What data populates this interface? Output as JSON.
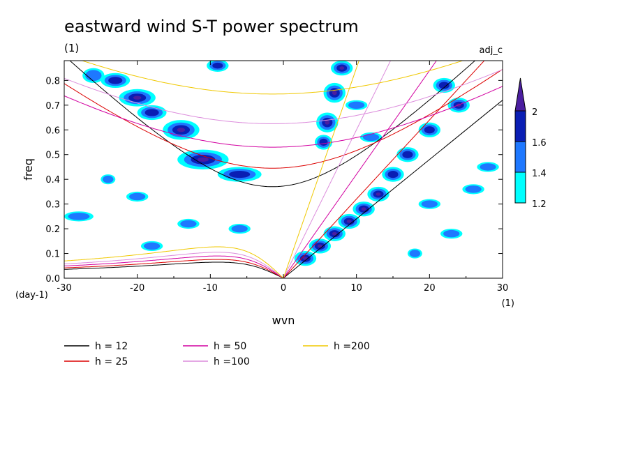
{
  "chart_data": {
    "type": "contour",
    "title": "eastward wind S-T power spectrum",
    "subtitle_left": "(1)",
    "subtitle_right": "adj_c",
    "xlabel": "wvn",
    "ylabel": "freq",
    "x_unit": "(1)",
    "y_unit": "(day-1)",
    "xlim": [
      -30,
      30
    ],
    "ylim": [
      0.0,
      0.88
    ],
    "x_ticks": [
      -30,
      -20,
      -10,
      0,
      10,
      20,
      30
    ],
    "x_tick_labels": [
      "-30",
      "-20",
      "-10",
      "0",
      "10",
      "20",
      "30"
    ],
    "y_ticks": [
      0.0,
      0.1,
      0.2,
      0.3,
      0.4,
      0.5,
      0.6,
      0.7,
      0.8
    ],
    "y_tick_labels": [
      "0.0",
      "0.1",
      "0.2",
      "0.3",
      "0.4",
      "0.5",
      "0.6",
      "0.7",
      "0.8"
    ],
    "colorbar": {
      "levels": [
        1.2,
        1.4,
        1.6,
        2.0
      ],
      "labels": [
        "1.2",
        "1.4",
        "1.6",
        "2"
      ],
      "colors": [
        "#00ffff",
        "#1e78ff",
        "#0a1eb4",
        "#4b1ea0"
      ]
    },
    "curve_colors": {
      "h12": "#000000",
      "h25": "#dc0000",
      "h50": "#d200a0",
      "h100": "#dc8cdc",
      "h200": "#f0c800"
    },
    "legend": [
      {
        "label": "h = 12",
        "color": "#000000",
        "key": "h12",
        "h": 12
      },
      {
        "label": "h = 25",
        "color": "#dc0000",
        "key": "h25",
        "h": 25
      },
      {
        "label": "h = 50",
        "color": "#d200a0",
        "key": "h50",
        "h": 50
      },
      {
        "label": "h =100",
        "color": "#dc8cdc",
        "key": "h100",
        "h": 100
      },
      {
        "label": "h =200",
        "color": "#f0c800",
        "key": "h200",
        "h": 200
      }
    ],
    "inertia_gravity_min_freq": {
      "h12": 0.37,
      "h25": 0.445,
      "h50": 0.53,
      "h100": 0.625,
      "h200": 0.745
    },
    "rossby_peak_freq": {
      "h12": 0.065,
      "h25": 0.076,
      "h50": 0.09,
      "h100": 0.105,
      "h200": 0.127
    },
    "kelvin_slope": {
      "h12": 0.024,
      "h25": 0.032,
      "h50": 0.042,
      "h100": 0.06,
      "h200": 0.085
    },
    "power_blobs": [
      {
        "x": -20,
        "y": 0.73,
        "rx": 2.5,
        "ry": 0.035,
        "level": 3
      },
      {
        "x": -18,
        "y": 0.67,
        "rx": 2.0,
        "ry": 0.03,
        "level": 2
      },
      {
        "x": -14,
        "y": 0.6,
        "rx": 2.5,
        "ry": 0.04,
        "level": 3
      },
      {
        "x": -11,
        "y": 0.48,
        "rx": 3.5,
        "ry": 0.04,
        "level": 3
      },
      {
        "x": -6,
        "y": 0.42,
        "rx": 3.0,
        "ry": 0.03,
        "level": 2
      },
      {
        "x": -23,
        "y": 0.8,
        "rx": 2.0,
        "ry": 0.03,
        "level": 2
      },
      {
        "x": -26,
        "y": 0.82,
        "rx": 1.5,
        "ry": 0.03,
        "level": 1
      },
      {
        "x": -9,
        "y": 0.86,
        "rx": 1.5,
        "ry": 0.025,
        "level": 2
      },
      {
        "x": -28,
        "y": 0.25,
        "rx": 2.0,
        "ry": 0.02,
        "level": 1
      },
      {
        "x": -20,
        "y": 0.33,
        "rx": 1.5,
        "ry": 0.02,
        "level": 1
      },
      {
        "x": -13,
        "y": 0.22,
        "rx": 1.5,
        "ry": 0.02,
        "level": 1
      },
      {
        "x": -18,
        "y": 0.13,
        "rx": 1.5,
        "ry": 0.02,
        "level": 1
      },
      {
        "x": -24,
        "y": 0.4,
        "rx": 1.0,
        "ry": 0.02,
        "level": 1
      },
      {
        "x": -6,
        "y": 0.2,
        "rx": 1.5,
        "ry": 0.02,
        "level": 1
      },
      {
        "x": 7,
        "y": 0.75,
        "rx": 1.5,
        "ry": 0.04,
        "level": 3
      },
      {
        "x": 8,
        "y": 0.85,
        "rx": 1.5,
        "ry": 0.03,
        "level": 3
      },
      {
        "x": 6,
        "y": 0.63,
        "rx": 1.5,
        "ry": 0.04,
        "level": 3
      },
      {
        "x": 5.5,
        "y": 0.55,
        "rx": 1.2,
        "ry": 0.03,
        "level": 2
      },
      {
        "x": 3,
        "y": 0.08,
        "rx": 1.5,
        "ry": 0.03,
        "level": 3
      },
      {
        "x": 5,
        "y": 0.13,
        "rx": 1.5,
        "ry": 0.03,
        "level": 3
      },
      {
        "x": 7,
        "y": 0.18,
        "rx": 1.5,
        "ry": 0.03,
        "level": 3
      },
      {
        "x": 9,
        "y": 0.23,
        "rx": 1.5,
        "ry": 0.03,
        "level": 3
      },
      {
        "x": 11,
        "y": 0.28,
        "rx": 1.5,
        "ry": 0.03,
        "level": 3
      },
      {
        "x": 13,
        "y": 0.34,
        "rx": 1.5,
        "ry": 0.03,
        "level": 3
      },
      {
        "x": 15,
        "y": 0.42,
        "rx": 1.5,
        "ry": 0.03,
        "level": 2
      },
      {
        "x": 17,
        "y": 0.5,
        "rx": 1.5,
        "ry": 0.03,
        "level": 2
      },
      {
        "x": 20,
        "y": 0.6,
        "rx": 1.5,
        "ry": 0.03,
        "level": 2
      },
      {
        "x": 24,
        "y": 0.7,
        "rx": 1.5,
        "ry": 0.03,
        "level": 3
      },
      {
        "x": 22,
        "y": 0.78,
        "rx": 1.5,
        "ry": 0.03,
        "level": 2
      },
      {
        "x": 26,
        "y": 0.36,
        "rx": 1.5,
        "ry": 0.02,
        "level": 1
      },
      {
        "x": 20,
        "y": 0.3,
        "rx": 1.5,
        "ry": 0.02,
        "level": 1
      },
      {
        "x": 23,
        "y": 0.18,
        "rx": 1.5,
        "ry": 0.02,
        "level": 1
      },
      {
        "x": 18,
        "y": 0.1,
        "rx": 1.0,
        "ry": 0.02,
        "level": 1
      },
      {
        "x": 28,
        "y": 0.45,
        "rx": 1.5,
        "ry": 0.02,
        "level": 1
      },
      {
        "x": 12,
        "y": 0.57,
        "rx": 1.5,
        "ry": 0.02,
        "level": 1
      },
      {
        "x": 10,
        "y": 0.7,
        "rx": 1.5,
        "ry": 0.02,
        "level": 1
      }
    ]
  }
}
